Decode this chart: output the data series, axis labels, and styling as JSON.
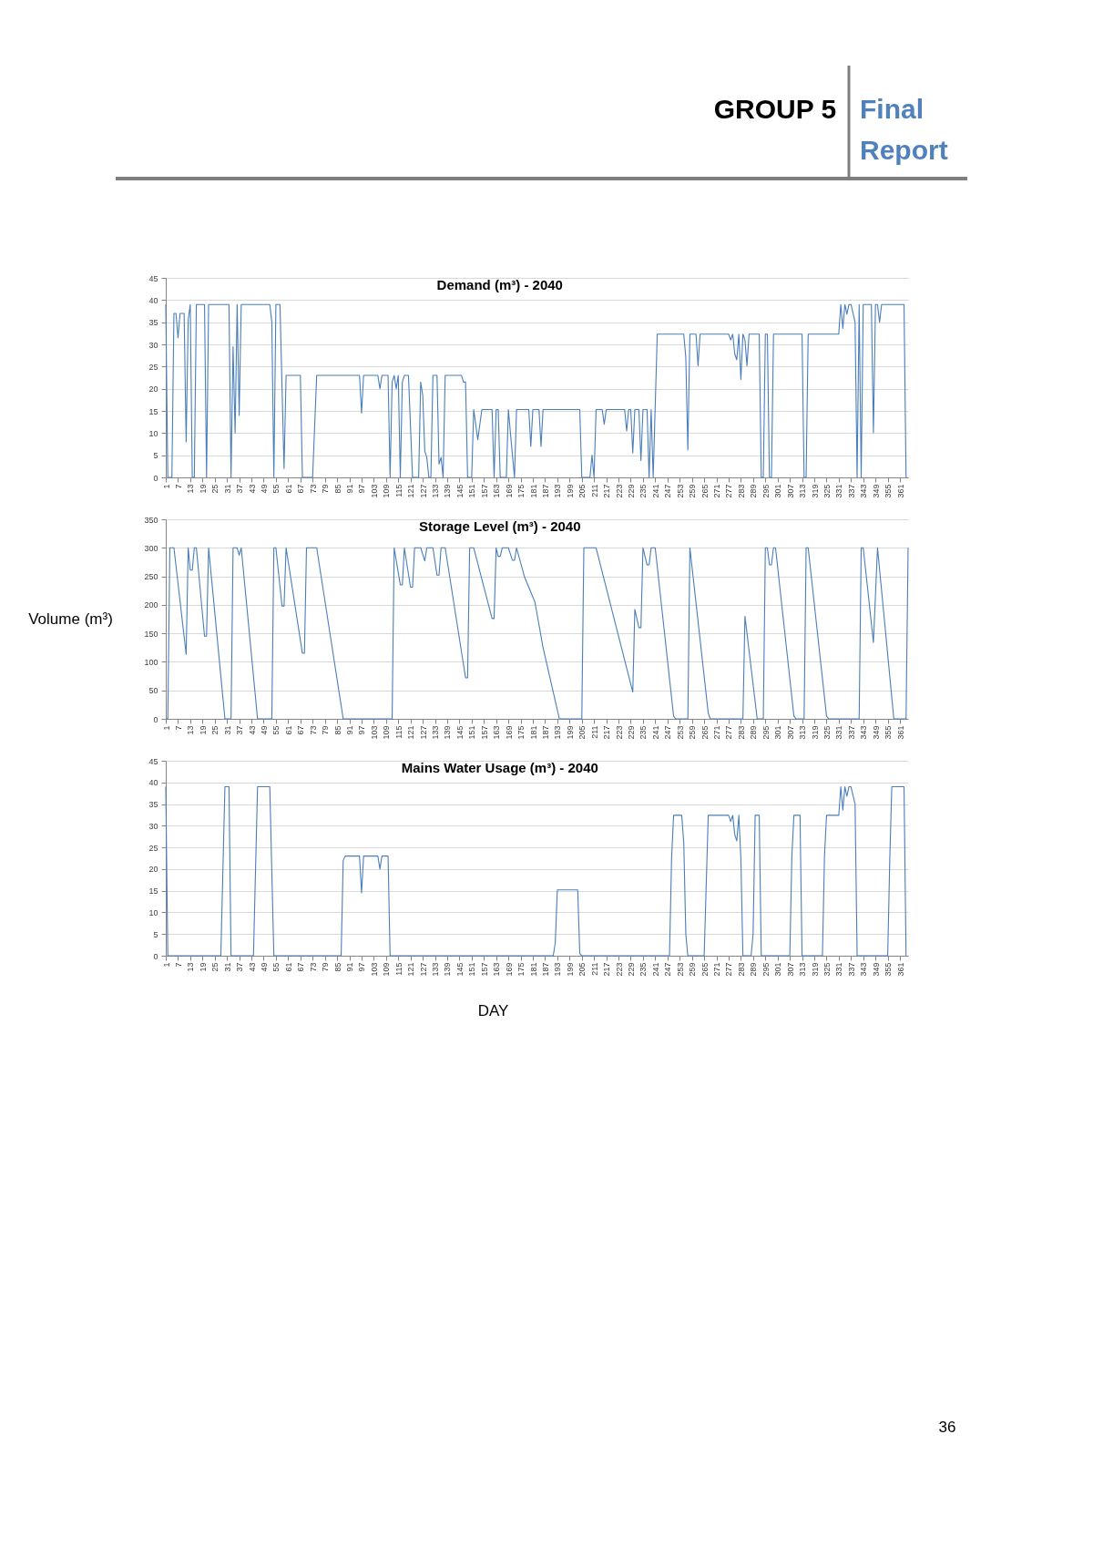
{
  "chart_data": [
    {
      "type": "line",
      "title": "Demand (m³) - 2040",
      "annotations": [
        "GROUP 5",
        "Final Report"
      ],
      "grid": "y",
      "xlim": [
        1,
        365
      ],
      "ylim": [
        0,
        45
      ],
      "xticks": [
        1,
        7,
        13,
        19,
        25,
        31,
        37,
        43,
        49,
        55,
        61,
        67,
        73,
        79,
        85,
        91,
        97,
        103,
        109,
        115,
        121,
        127,
        133,
        139,
        145,
        151,
        157,
        163,
        169,
        175,
        181,
        187,
        193,
        199,
        205,
        211,
        217,
        223,
        229,
        235,
        241,
        247,
        253,
        259,
        265,
        271,
        277,
        283,
        289,
        295,
        301,
        307,
        313,
        319,
        325,
        331,
        337,
        343,
        349,
        355,
        361
      ],
      "yticks": [
        0,
        5,
        10,
        15,
        20,
        25,
        30,
        35,
        40,
        45
      ],
      "x": [
        1,
        2,
        4,
        5,
        6,
        7,
        8,
        10,
        11,
        12,
        13,
        14,
        15,
        16,
        20,
        21,
        22,
        32,
        33,
        34,
        35,
        36,
        37,
        38,
        52,
        53,
        54,
        55,
        57,
        59,
        60,
        67,
        68,
        73,
        75,
        96,
        97,
        98,
        105,
        106,
        107,
        110,
        111,
        112,
        113,
        114,
        115,
        116,
        117,
        118,
        120,
        122,
        125,
        126,
        127,
        128,
        129,
        130,
        131,
        132,
        134,
        135,
        136,
        137,
        138,
        146,
        147,
        148,
        149,
        151,
        152,
        154,
        156,
        161,
        162,
        163,
        164,
        165,
        168,
        169,
        170,
        172,
        173,
        179,
        180,
        181,
        184,
        185,
        186,
        204,
        205,
        209,
        210,
        211,
        212,
        215,
        216,
        217,
        226,
        227,
        228,
        229,
        230,
        231,
        233,
        234,
        235,
        237,
        238,
        239,
        240,
        242,
        255,
        256,
        257,
        258,
        261,
        262,
        263,
        277,
        278,
        279,
        280,
        281,
        282,
        283,
        284,
        285,
        286,
        287,
        292,
        293,
        294,
        295,
        296,
        297,
        298,
        299,
        313,
        314,
        315,
        316,
        331,
        332,
        333,
        334,
        335,
        336,
        337,
        339,
        340,
        341,
        342,
        343,
        347,
        348,
        349,
        350,
        351,
        352,
        363,
        364
      ],
      "series": [
        {
          "color": "#4a7ebb",
          "values": [
            39,
            0,
            0,
            37,
            37,
            31.5,
            37,
            37,
            8,
            35.5,
            39,
            0,
            0,
            39,
            39,
            0,
            39,
            39,
            0,
            29.5,
            10,
            39,
            14,
            39,
            39,
            35,
            0,
            39,
            39,
            2,
            23,
            23,
            0,
            0,
            23,
            23,
            14.5,
            23,
            23,
            20,
            23,
            23,
            0,
            21.5,
            23,
            20,
            23,
            0,
            21.5,
            23,
            23,
            0,
            0,
            21.5,
            18.5,
            6,
            4.5,
            0,
            0,
            23,
            23,
            3,
            4.5,
            0,
            23,
            23,
            21.5,
            21.5,
            0,
            0,
            15.3,
            8.5,
            15.3,
            15.3,
            0,
            15.3,
            15.3,
            0,
            0,
            15.3,
            10,
            0,
            15.3,
            15.3,
            7,
            15.3,
            15.3,
            7,
            15.3,
            15.3,
            0,
            0,
            5,
            0,
            15.3,
            15.3,
            12,
            15.3,
            15.3,
            10.5,
            15.3,
            15.3,
            5.5,
            15.3,
            15.3,
            3.8,
            15.3,
            15.3,
            0,
            15.3,
            0,
            32.3,
            32.3,
            27,
            6.2,
            32.3,
            32.3,
            25.2,
            32.3,
            32.3,
            31,
            32.3,
            27.9,
            26.5,
            32.3,
            22.1,
            32.3,
            31,
            25.2,
            32.3,
            32.3,
            0,
            0,
            32.3,
            32.3,
            0,
            0,
            32.3,
            32.3,
            0,
            0,
            32.3,
            32.3,
            39,
            33.6,
            39,
            36.8,
            39,
            39,
            35,
            0,
            39,
            0,
            39,
            39,
            10.1,
            39,
            39,
            35,
            39,
            39,
            0
          ]
        }
      ]
    },
    {
      "type": "line",
      "title": "Storage Level (m³) - 2040",
      "ylabel": "Volume (m³)",
      "grid": "y",
      "xlim": [
        1,
        365
      ],
      "ylim": [
        0,
        350
      ],
      "xticks": [
        1,
        7,
        13,
        19,
        25,
        31,
        37,
        43,
        49,
        55,
        61,
        67,
        73,
        79,
        85,
        91,
        97,
        103,
        109,
        115,
        121,
        127,
        133,
        139,
        145,
        151,
        157,
        163,
        169,
        175,
        181,
        187,
        193,
        199,
        205,
        211,
        217,
        223,
        229,
        235,
        241,
        247,
        253,
        259,
        265,
        271,
        277,
        283,
        289,
        295,
        301,
        307,
        313,
        319,
        325,
        331,
        337,
        343,
        349,
        355,
        361
      ],
      "yticks": [
        0,
        50,
        100,
        150,
        200,
        250,
        300,
        350
      ],
      "x": [
        1,
        2,
        3,
        5,
        11,
        12,
        13,
        14,
        15,
        16,
        20,
        21,
        22,
        30,
        33,
        34,
        36,
        37,
        38,
        46,
        53,
        54,
        55,
        58,
        59,
        60,
        68,
        69,
        70,
        75,
        88,
        112,
        113,
        116,
        117,
        118,
        121,
        122,
        123,
        126,
        128,
        129,
        132,
        134,
        135,
        136,
        138,
        148,
        149,
        150,
        152,
        161,
        162,
        163,
        164,
        165,
        166,
        169,
        171,
        172,
        173,
        177,
        182,
        186,
        194,
        205,
        206,
        212,
        230,
        231,
        233,
        234,
        235,
        237,
        238,
        239,
        241,
        250,
        251,
        257,
        258,
        267,
        268,
        284,
        285,
        291,
        294,
        295,
        296,
        297,
        298,
        299,
        300,
        309,
        310,
        314,
        315,
        316,
        325,
        326,
        341,
        342,
        343,
        348,
        350,
        358,
        364,
        365
      ],
      "series": [
        {
          "color": "#4a7ebb",
          "values": [
            0,
            0,
            300,
            300,
            113,
            300,
            261,
            261,
            300,
            300,
            145,
            145,
            300,
            0,
            0,
            300,
            300,
            287,
            300,
            0,
            0,
            300,
            300,
            198,
            198,
            300,
            115,
            115,
            300,
            300,
            0,
            0,
            300,
            235,
            235,
            300,
            231,
            231,
            300,
            300,
            277,
            300,
            300,
            252,
            252,
            300,
            300,
            72,
            72,
            300,
            300,
            176,
            176,
            300,
            285,
            285,
            300,
            300,
            278,
            278,
            300,
            248,
            205,
            125,
            0,
            0,
            300,
            300,
            47,
            192,
            160,
            160,
            300,
            270,
            270,
            300,
            300,
            5,
            0,
            0,
            300,
            10,
            0,
            0,
            180,
            0,
            0,
            300,
            300,
            270,
            270,
            300,
            300,
            5,
            0,
            0,
            300,
            300,
            5,
            0,
            0,
            300,
            300,
            134,
            300,
            0,
            0,
            300
          ]
        }
      ]
    },
    {
      "type": "line",
      "title": "Mains Water Usage (m³) - 2040",
      "xlabel": "DAY",
      "annotations": [
        "36"
      ],
      "grid": "y",
      "xlim": [
        1,
        365
      ],
      "ylim": [
        0,
        45
      ],
      "xticks": [
        1,
        7,
        13,
        19,
        25,
        31,
        37,
        43,
        49,
        55,
        61,
        67,
        73,
        79,
        85,
        91,
        97,
        103,
        109,
        115,
        121,
        127,
        133,
        139,
        145,
        151,
        157,
        163,
        169,
        175,
        181,
        187,
        193,
        199,
        205,
        211,
        217,
        223,
        229,
        235,
        241,
        247,
        253,
        259,
        265,
        271,
        277,
        283,
        289,
        295,
        301,
        307,
        313,
        319,
        325,
        331,
        337,
        343,
        349,
        355,
        361
      ],
      "yticks": [
        0,
        5,
        10,
        15,
        20,
        25,
        30,
        35,
        40,
        45
      ],
      "x": [
        1,
        2,
        28,
        30,
        32,
        33,
        44,
        46,
        52,
        54,
        87,
        88,
        89,
        96,
        97,
        98,
        105,
        106,
        107,
        110,
        111,
        191,
        192,
        193,
        203,
        204,
        205,
        248,
        249,
        250,
        254,
        255,
        256,
        257,
        265,
        267,
        277,
        278,
        279,
        280,
        281,
        282,
        283,
        284,
        288,
        289,
        290,
        292,
        293,
        307,
        308,
        309,
        312,
        313,
        323,
        324,
        325,
        331,
        332,
        333,
        334,
        335,
        336,
        337,
        339,
        340,
        355,
        356,
        357,
        363,
        364
      ],
      "series": [
        {
          "color": "#4a7ebb",
          "values": [
            39,
            0,
            0,
            39,
            39,
            0,
            0,
            39,
            39,
            0,
            0,
            22,
            23,
            23,
            14.5,
            23,
            23,
            20,
            23,
            23,
            0,
            0,
            3,
            15.2,
            15.2,
            0.5,
            0,
            0,
            22,
            32.4,
            32.4,
            26,
            5,
            0,
            0,
            32.4,
            32.4,
            31,
            32.4,
            28,
            26.5,
            32.4,
            22.5,
            0,
            0,
            5,
            32.4,
            32.4,
            0,
            0,
            23,
            32.4,
            32.4,
            0,
            0,
            23,
            32.4,
            32.4,
            39,
            33.6,
            39,
            36.8,
            39,
            39,
            35,
            0,
            0,
            22,
            39,
            39,
            0
          ]
        }
      ]
    }
  ]
}
